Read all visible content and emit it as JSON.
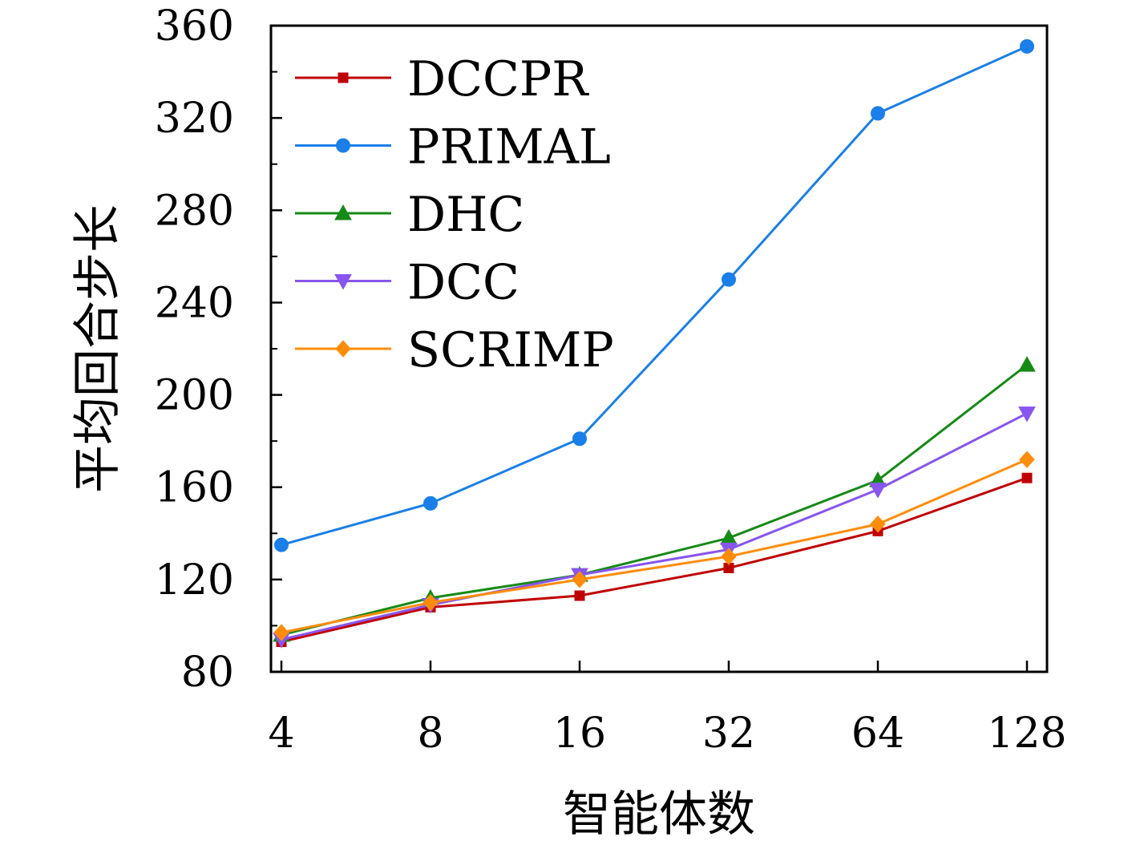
{
  "chart_data": {
    "type": "line",
    "xlabel": "智能体数",
    "ylabel": "平均回合步长",
    "categories": [
      "4",
      "8",
      "16",
      "32",
      "64",
      "128"
    ],
    "x_scale": "log2",
    "ylim": [
      80,
      360
    ],
    "yticks": [
      80,
      120,
      160,
      200,
      240,
      280,
      320,
      360
    ],
    "grid": false,
    "legend_position": "top-left",
    "series": [
      {
        "name": "DCCPR",
        "color": "#c00000",
        "marker": "square",
        "values": [
          93,
          108,
          113,
          125,
          141,
          164
        ]
      },
      {
        "name": "PRIMAL",
        "color": "#1a7fe8",
        "marker": "circle",
        "values": [
          135,
          153,
          181,
          250,
          322,
          351
        ]
      },
      {
        "name": "DHC",
        "color": "#168a16",
        "marker": "triangle-up",
        "values": [
          96,
          112,
          122,
          138,
          163,
          213
        ]
      },
      {
        "name": "DCC",
        "color": "#8855ee",
        "marker": "triangle-down",
        "values": [
          94,
          109,
          122,
          133,
          159,
          192
        ]
      },
      {
        "name": "SCRIMP",
        "color": "#ff8c0a",
        "marker": "diamond",
        "values": [
          97,
          110,
          120,
          130,
          144,
          172
        ]
      }
    ]
  }
}
